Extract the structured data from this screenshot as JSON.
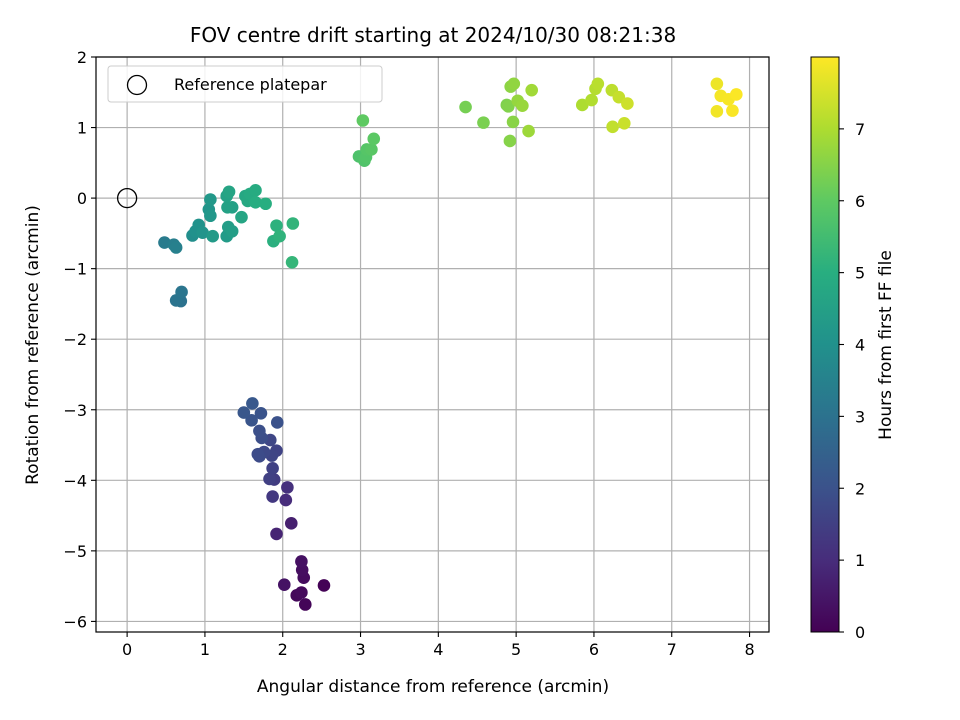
{
  "chart_data": {
    "type": "scatter",
    "title": "FOV centre drift starting at 2024/10/30 08:21:38",
    "xlabel": "Angular distance from reference (arcmin)",
    "ylabel": "Rotation from reference (arcmin)",
    "xlim": [
      -0.4,
      8.25
    ],
    "ylim": [
      -6.15,
      2.0
    ],
    "xticks": [
      0,
      1,
      2,
      3,
      4,
      5,
      6,
      7,
      8
    ],
    "yticks": [
      -6,
      -5,
      -4,
      -3,
      -2,
      -1,
      0,
      1,
      2
    ],
    "grid": true,
    "legend": {
      "placement": "top-left",
      "entries": [
        "Reference platepar"
      ]
    },
    "reference_point": {
      "x": 0,
      "y": 0,
      "label": "Reference platepar"
    },
    "colormap": "viridis",
    "colorbar": {
      "label": "Hours from first FF file",
      "range": [
        0,
        8.0
      ],
      "ticks": [
        0,
        1,
        2,
        3,
        4,
        5,
        6,
        7
      ]
    },
    "points": [
      {
        "x": 2.53,
        "y": -5.49,
        "c": 0.05
      },
      {
        "x": 2.29,
        "y": -5.76,
        "c": 0.1
      },
      {
        "x": 2.18,
        "y": -5.63,
        "c": 0.15
      },
      {
        "x": 2.24,
        "y": -5.59,
        "c": 0.2
      },
      {
        "x": 2.27,
        "y": -5.38,
        "c": 0.25
      },
      {
        "x": 2.25,
        "y": -5.27,
        "c": 0.3
      },
      {
        "x": 2.24,
        "y": -5.15,
        "c": 0.35
      },
      {
        "x": 2.02,
        "y": -5.48,
        "c": 0.4
      },
      {
        "x": 2.11,
        "y": -4.61,
        "c": 0.7
      },
      {
        "x": 1.92,
        "y": -4.76,
        "c": 0.8
      },
      {
        "x": 2.04,
        "y": -4.28,
        "c": 1.0
      },
      {
        "x": 2.06,
        "y": -4.1,
        "c": 1.1
      },
      {
        "x": 1.87,
        "y": -4.23,
        "c": 1.3
      },
      {
        "x": 1.89,
        "y": -3.99,
        "c": 1.4
      },
      {
        "x": 1.83,
        "y": -3.98,
        "c": 1.5
      },
      {
        "x": 1.87,
        "y": -3.83,
        "c": 1.55
      },
      {
        "x": 1.92,
        "y": -3.58,
        "c": 1.6
      },
      {
        "x": 1.86,
        "y": -3.65,
        "c": 1.65
      },
      {
        "x": 1.84,
        "y": -3.43,
        "c": 1.7
      },
      {
        "x": 1.76,
        "y": -3.6,
        "c": 1.75
      },
      {
        "x": 1.7,
        "y": -3.66,
        "c": 1.8
      },
      {
        "x": 1.68,
        "y": -3.63,
        "c": 1.85
      },
      {
        "x": 1.73,
        "y": -3.4,
        "c": 1.9
      },
      {
        "x": 1.7,
        "y": -3.3,
        "c": 1.95
      },
      {
        "x": 1.93,
        "y": -3.18,
        "c": 2.0
      },
      {
        "x": 1.72,
        "y": -3.05,
        "c": 2.05
      },
      {
        "x": 1.6,
        "y": -3.15,
        "c": 2.1
      },
      {
        "x": 1.5,
        "y": -3.04,
        "c": 2.15
      },
      {
        "x": 1.61,
        "y": -2.91,
        "c": 2.2
      },
      {
        "x": 0.69,
        "y": -1.46,
        "c": 3.0
      },
      {
        "x": 0.63,
        "y": -1.45,
        "c": 3.05
      },
      {
        "x": 0.7,
        "y": -1.33,
        "c": 3.1
      },
      {
        "x": 0.48,
        "y": -0.63,
        "c": 3.3
      },
      {
        "x": 0.6,
        "y": -0.66,
        "c": 3.4
      },
      {
        "x": 0.63,
        "y": -0.7,
        "c": 3.45
      },
      {
        "x": 0.84,
        "y": -0.53,
        "c": 3.9
      },
      {
        "x": 0.88,
        "y": -0.47,
        "c": 4.0
      },
      {
        "x": 0.92,
        "y": -0.38,
        "c": 4.05
      },
      {
        "x": 0.97,
        "y": -0.49,
        "c": 4.1
      },
      {
        "x": 1.05,
        "y": -0.16,
        "c": 4.15
      },
      {
        "x": 1.07,
        "y": -0.25,
        "c": 4.2
      },
      {
        "x": 1.07,
        "y": -0.02,
        "c": 4.25
      },
      {
        "x": 1.1,
        "y": -0.54,
        "c": 4.3
      },
      {
        "x": 1.28,
        "y": -0.54,
        "c": 4.35
      },
      {
        "x": 1.3,
        "y": -0.41,
        "c": 4.4
      },
      {
        "x": 1.35,
        "y": -0.47,
        "c": 4.45
      },
      {
        "x": 1.35,
        "y": -0.13,
        "c": 4.5
      },
      {
        "x": 1.29,
        "y": -0.13,
        "c": 4.55
      },
      {
        "x": 1.28,
        "y": 0.03,
        "c": 4.6
      },
      {
        "x": 1.31,
        "y": 0.09,
        "c": 4.65
      },
      {
        "x": 1.47,
        "y": -0.27,
        "c": 4.7
      },
      {
        "x": 1.52,
        "y": 0.03,
        "c": 4.75
      },
      {
        "x": 1.55,
        "y": -0.04,
        "c": 4.8
      },
      {
        "x": 1.58,
        "y": 0.06,
        "c": 4.85
      },
      {
        "x": 1.65,
        "y": 0.11,
        "c": 4.9
      },
      {
        "x": 1.65,
        "y": -0.06,
        "c": 4.95
      },
      {
        "x": 1.78,
        "y": -0.08,
        "c": 5.0
      },
      {
        "x": 1.88,
        "y": -0.61,
        "c": 5.05
      },
      {
        "x": 1.92,
        "y": -0.39,
        "c": 5.1
      },
      {
        "x": 1.96,
        "y": -0.54,
        "c": 5.15
      },
      {
        "x": 2.13,
        "y": -0.36,
        "c": 5.2
      },
      {
        "x": 2.12,
        "y": -0.91,
        "c": 5.25
      },
      {
        "x": 2.98,
        "y": 0.59,
        "c": 5.7
      },
      {
        "x": 3.05,
        "y": 0.53,
        "c": 5.75
      },
      {
        "x": 3.07,
        "y": 0.58,
        "c": 5.8
      },
      {
        "x": 3.08,
        "y": 0.69,
        "c": 5.85
      },
      {
        "x": 3.14,
        "y": 0.69,
        "c": 5.9
      },
      {
        "x": 3.17,
        "y": 0.84,
        "c": 5.95
      },
      {
        "x": 3.03,
        "y": 1.1,
        "c": 6.0
      },
      {
        "x": 4.35,
        "y": 1.29,
        "c": 6.3
      },
      {
        "x": 4.58,
        "y": 1.07,
        "c": 6.35
      },
      {
        "x": 4.88,
        "y": 1.32,
        "c": 6.4
      },
      {
        "x": 4.9,
        "y": 1.3,
        "c": 6.45
      },
      {
        "x": 4.92,
        "y": 0.81,
        "c": 6.5
      },
      {
        "x": 4.96,
        "y": 1.08,
        "c": 6.55
      },
      {
        "x": 4.93,
        "y": 1.58,
        "c": 6.6
      },
      {
        "x": 4.97,
        "y": 1.62,
        "c": 6.65
      },
      {
        "x": 5.02,
        "y": 1.38,
        "c": 6.7
      },
      {
        "x": 5.08,
        "y": 1.31,
        "c": 6.75
      },
      {
        "x": 5.16,
        "y": 0.95,
        "c": 6.8
      },
      {
        "x": 5.2,
        "y": 1.53,
        "c": 6.85
      },
      {
        "x": 5.85,
        "y": 1.32,
        "c": 7.0
      },
      {
        "x": 5.97,
        "y": 1.39,
        "c": 7.05
      },
      {
        "x": 6.02,
        "y": 1.55,
        "c": 7.1
      },
      {
        "x": 6.05,
        "y": 1.62,
        "c": 7.15
      },
      {
        "x": 6.23,
        "y": 1.53,
        "c": 7.2
      },
      {
        "x": 6.24,
        "y": 1.01,
        "c": 7.25
      },
      {
        "x": 6.32,
        "y": 1.43,
        "c": 7.3
      },
      {
        "x": 6.39,
        "y": 1.06,
        "c": 7.35
      },
      {
        "x": 6.43,
        "y": 1.34,
        "c": 7.4
      },
      {
        "x": 7.58,
        "y": 1.62,
        "c": 7.8
      },
      {
        "x": 7.58,
        "y": 1.23,
        "c": 7.85
      },
      {
        "x": 7.63,
        "y": 1.45,
        "c": 7.9
      },
      {
        "x": 7.73,
        "y": 1.4,
        "c": 7.92
      },
      {
        "x": 7.78,
        "y": 1.24,
        "c": 7.95
      },
      {
        "x": 7.83,
        "y": 1.47,
        "c": 7.98
      }
    ]
  }
}
